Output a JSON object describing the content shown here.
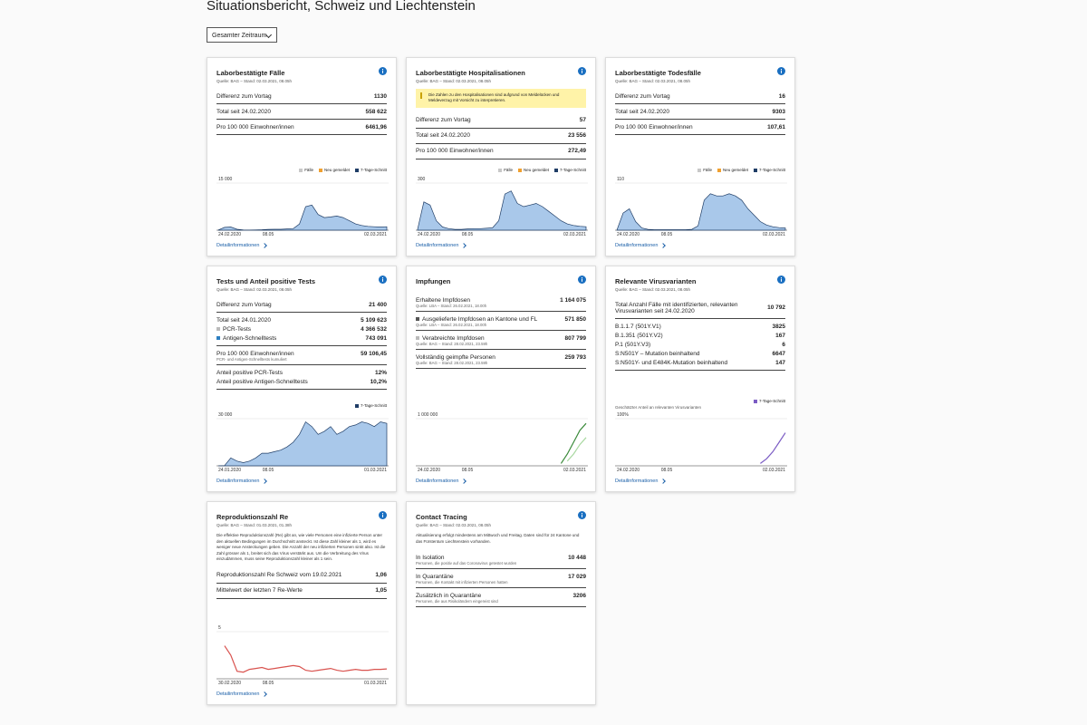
{
  "header": {
    "title": "Situationsbericht, Schweiz und Liechtenstein"
  },
  "filter": {
    "label": "Gesamter Zeitraum"
  },
  "cards": [
    {
      "title": "Laborbestätigte Fälle",
      "source": "Quelle: BAG – Stand: 02.03.2021, 08.05h",
      "groups": [
        [
          {
            "label": "Differenz zum Vortag",
            "value": "1130"
          }
        ],
        [
          {
            "label": "Total seit 24.02.2020",
            "value": "558 622"
          }
        ],
        [
          {
            "label": "Pro 100 000 Einwohner/innen",
            "value": "6461,96"
          }
        ]
      ],
      "legend": [
        {
          "label": "Fälle",
          "color": "#c8c8c8"
        },
        {
          "label": "Neu gemeldet",
          "color": "#f0a030"
        },
        {
          "label": "7-Tage-Schnitt",
          "color": "#1f3d66"
        }
      ],
      "chart": {
        "type": "area",
        "ylim": [
          0,
          15000
        ],
        "yticks": [
          {
            "value": 15000,
            "label": "15 000"
          }
        ],
        "xlabels": [
          "24.02.2020",
          "08.05",
          "02.03.2021"
        ],
        "series": [
          {
            "color": "#a9c8ea",
            "values": [
              50,
              900,
              1000,
              300,
              100,
              50,
              100,
              150,
              250,
              300,
              300,
              400,
              500,
              2000,
              7500,
              8000,
              5000,
              4000,
              4200,
              4500,
              4000,
              3000,
              2000,
              1500,
              1200,
              1100,
              1000,
              1100
            ]
          }
        ]
      },
      "link": "Detailinformationen"
    },
    {
      "title": "Laborbestätigte Hospitalisationen",
      "source": "Quelle: BAG – Stand: 02.03.2021, 08.05h",
      "notice": "Die Zahlen zu den Hospitalisationen sind aufgrund von Meldelücken und Meldeverzug mit Vorsicht zu interpretieren.",
      "groups": [
        [
          {
            "label": "Differenz zum Vortag",
            "value": "57"
          }
        ],
        [
          {
            "label": "Total seit 24.02.2020",
            "value": "23 556"
          }
        ],
        [
          {
            "label": "Pro 100 000 Einwohner/innen",
            "value": "272,49"
          }
        ]
      ],
      "legend": [
        {
          "label": "Fälle",
          "color": "#c8c8c8"
        },
        {
          "label": "Neu gemeldet",
          "color": "#f0a030"
        },
        {
          "label": "7-Tage-Schnitt",
          "color": "#1f3d66"
        }
      ],
      "chart": {
        "type": "area",
        "ylim": [
          0,
          300
        ],
        "yticks": [
          300
        ],
        "xlabels": [
          "24.02.2020",
          "08.05",
          "02.03.2021"
        ],
        "series": [
          {
            "color": "#a9c8ea",
            "values": [
              5,
              180,
              160,
              60,
              20,
              10,
              5,
              5,
              8,
              10,
              10,
              12,
              15,
              60,
              230,
              250,
              170,
              150,
              160,
              170,
              150,
              120,
              90,
              60,
              40,
              30,
              25,
              22
            ]
          }
        ]
      },
      "link": "Detailinformationen"
    },
    {
      "title": "Laborbestätigte Todesfälle",
      "source": "Quelle: BAG – Stand: 02.03.2021, 08.05h",
      "groups": [
        [
          {
            "label": "Differenz zum Vortag",
            "value": "16"
          }
        ],
        [
          {
            "label": "Total seit 24.02.2020",
            "value": "9303"
          }
        ],
        [
          {
            "label": "Pro 100 000 Einwohner/innen",
            "value": "107,61"
          }
        ]
      ],
      "legend": [
        {
          "label": "Fälle",
          "color": "#c8c8c8"
        },
        {
          "label": "Neu gemeldet",
          "color": "#f0a030"
        },
        {
          "label": "7-Tage-Schnitt",
          "color": "#1f3d66"
        }
      ],
      "chart": {
        "type": "area",
        "ylim": [
          0,
          110
        ],
        "yticks": [
          110
        ],
        "xlabels": [
          "24.02.2020",
          "08.05",
          "02.03.2021"
        ],
        "series": [
          {
            "color": "#a9c8ea",
            "values": [
              0,
              40,
              50,
              20,
              5,
              2,
              1,
              1,
              1,
              1,
              1,
              1,
              2,
              10,
              70,
              85,
              80,
              80,
              85,
              80,
              70,
              50,
              35,
              20,
              12,
              8,
              6,
              5
            ]
          }
        ]
      },
      "link": "Detailinformationen"
    },
    {
      "title": "Tests und Anteil positive Tests",
      "source": "Quelle: BAG – Stand: 02.03.2021, 08.05h",
      "groups": [
        [
          {
            "label": "Differenz zum Vortag",
            "value": "21 400"
          }
        ],
        [
          {
            "label": "Total seit 24.01.2020",
            "value": "5 109 623"
          },
          {
            "label": "PCR-Tests",
            "value": "4 366 532",
            "marker": "#bbbbbb"
          },
          {
            "label": "Antigen-Schnelltests",
            "value": "743 091",
            "marker": "#2d7fc1"
          }
        ],
        [
          {
            "label": "Pro 100 000 Einwohner/innen",
            "value": "59 106,45",
            "note": "PCR- und Antigen-Schnelltests kumuliert"
          }
        ],
        [
          {
            "label": "Anteil positive PCR-Tests",
            "value": "12%"
          },
          {
            "label": "Anteil positive Antigen-Schnelltests",
            "value": "10,2%"
          }
        ]
      ],
      "legend": [
        {
          "label": "7-Tage-Schnitt",
          "color": "#1f3d66"
        }
      ],
      "chart": {
        "type": "area",
        "ylim": [
          0,
          30000
        ],
        "yticks": [
          {
            "value": 30000,
            "label": "30 000"
          }
        ],
        "xlabels": [
          "24.01.2020",
          "08.05",
          "01.03.2021"
        ],
        "series": [
          {
            "color": "#a9c8ea",
            "values": [
              0,
              200,
              5000,
              3000,
              2000,
              3000,
              5000,
              8000,
              8000,
              9000,
              10000,
              12000,
              15000,
              20000,
              28000,
              25000,
              20000,
              22000,
              25000,
              20000,
              22000,
              25000,
              26000,
              28000,
              27000,
              25000,
              28000,
              27000
            ]
          }
        ]
      },
      "link": "Detailinformationen"
    },
    {
      "title": "Impfungen",
      "groups": [
        [
          {
            "label": "Erhaltene Impfdosen",
            "value": "1 164 075",
            "note": "Quelle: LBA – Stand: 26.02.2021, 18.00h"
          }
        ],
        [
          {
            "label": "Ausgelieferte Impfdosen an Kantone und FL",
            "value": "571 850",
            "marker": "#555555",
            "note": "Quelle: LBA – Stand: 26.02.2021, 18.00h"
          }
        ],
        [
          {
            "label": "Verabreichte Impfdosen",
            "value": "807 799",
            "marker": "#bbbbbb",
            "note": "Quelle: BAG – Stand: 28.02.2021, 23.59h"
          }
        ],
        [
          {
            "label": "Vollständig geimpfte Personen",
            "value": "259 793",
            "note": "Quelle: BAG – Stand: 28.02.2021, 23.59h"
          }
        ]
      ],
      "chart": {
        "type": "line",
        "ylim": [
          0,
          1000000
        ],
        "yticks": [
          {
            "value": 1000000,
            "label": "1 000 000"
          }
        ],
        "xlabels": [
          "24.02.2020",
          "08.05",
          "02.03.2021"
        ],
        "series": [
          {
            "color": "#3a8a3a",
            "values": [
              null,
              null,
              null,
              null,
              null,
              null,
              null,
              null,
              null,
              null,
              null,
              null,
              null,
              null,
              null,
              null,
              null,
              null,
              null,
              null,
              null,
              null,
              null,
              50000,
              250000,
              500000,
              750000,
              900000
            ]
          },
          {
            "color": "#a8d8a0",
            "values": [
              null,
              null,
              null,
              null,
              null,
              null,
              null,
              null,
              null,
              null,
              null,
              null,
              null,
              null,
              null,
              null,
              null,
              null,
              null,
              null,
              null,
              null,
              null,
              null,
              100000,
              250000,
              450000,
              600000
            ]
          }
        ]
      },
      "link": "Detailinformationen"
    },
    {
      "title": "Relevante Virusvarianten",
      "source": "Quelle: BAG – Stand: 02.03.2021, 08.05h",
      "groups": [
        [
          {
            "label": "Total Anzahl Fälle mit identifizierten, relevanten Virusvarianten seit 24.02.2020",
            "value": "10 792"
          }
        ],
        [
          {
            "label": "B.1.1.7 (501Y.V1)",
            "value": "3825"
          },
          {
            "label": "B.1.351 (501Y.V2)",
            "value": "167"
          },
          {
            "label": "P.1 (501Y.V3)",
            "value": "6"
          },
          {
            "label": "S:N501Y – Mutation beinhaltend",
            "value": "6647"
          },
          {
            "label": "S:N501Y- und E484K-Mutation beinhaltend",
            "value": "147"
          }
        ]
      ],
      "legend": [
        {
          "label": "7-Tage-Schnitt",
          "color": "#7b5cc4"
        }
      ],
      "chart": {
        "type": "line",
        "subtitle": "Geschätzter Anteil an relevanten Virusvarianten",
        "ylim": [
          0,
          100
        ],
        "yticks": [
          {
            "value": 100,
            "label": "100%"
          }
        ],
        "xlabels": [
          "24.02.2020",
          "08.05",
          "02.03.2021"
        ],
        "series": [
          {
            "color": "#7b5cc4",
            "values": [
              null,
              null,
              null,
              null,
              null,
              null,
              null,
              null,
              null,
              null,
              null,
              null,
              null,
              null,
              null,
              null,
              null,
              null,
              null,
              null,
              null,
              null,
              null,
              5,
              15,
              30,
              50,
              70
            ]
          }
        ]
      },
      "link": "Detailinformationen"
    },
    {
      "title": "Reproduktionszahl Re",
      "source": "Quelle: BAG – Stand: 01.03.2021, 01.38h",
      "intro": "Die effektive Reproduktionszahl (Re) gibt an, wie viele Personen eine infizierte Person unter den aktuellen Bedingungen im Durchschnitt ansteckt. Ist diese Zahl kleiner als 1, wird es weniger neue Ansteckungen geben. Die Anzahl der neu infizierten Personen sinkt also. Ist die Zahl grösser als 1, breitet sich das Virus verstärkt aus. Um die Verbreitung des Virus einzudämmen, muss seine Reproduktionszahl kleiner als 1 sein.",
      "groups": [
        [
          {
            "label": "Reproduktionszahl Re Schweiz vom 19.02.2021",
            "value": "1,06"
          }
        ],
        [
          {
            "label": "Mittelwert der letzten 7 Re-Werte",
            "value": "1,05"
          }
        ]
      ],
      "chart": {
        "type": "line",
        "ylim": [
          0,
          5
        ],
        "yticks": [
          5
        ],
        "xlabels": [
          "30.02.2020",
          "08.05",
          "01.03.2021"
        ],
        "series": [
          {
            "color": "#d9534f",
            "values": [
              null,
              3.5,
              2.5,
              0.8,
              0.7,
              1.0,
              1.1,
              1.2,
              1.0,
              1.1,
              1.2,
              1.3,
              1.4,
              1.3,
              0.9,
              0.8,
              0.9,
              1.0,
              1.1,
              0.9,
              0.8,
              0.9,
              1.0,
              0.9,
              0.9,
              1.0,
              1.0,
              1.05
            ]
          }
        ]
      },
      "link": "Detailinformationen"
    },
    {
      "title": "Contact Tracing",
      "source": "Quelle: BAG – Stand: 02.03.2021, 08.05h",
      "intro": "Aktualisierung erfolgt mindestens am Mittwoch und Freitag. Daten sind für 24 Kantone und das Fürstentum Liechtenstein vorhanden.",
      "groups": [
        [
          {
            "label": "In Isolation",
            "value": "10 448",
            "note": "Personen, die positiv auf das Coronavirus getestet wurden"
          }
        ],
        [
          {
            "label": "In Quarantäne",
            "value": "17 029",
            "note": "Personen, die Kontakt mit infizierten Personen hatten"
          }
        ],
        [
          {
            "label": "Zusätzlich in Quarantäne",
            "value": "3206",
            "note": "Personen, die aus Risikoländern eingereist sind"
          }
        ]
      ]
    }
  ]
}
